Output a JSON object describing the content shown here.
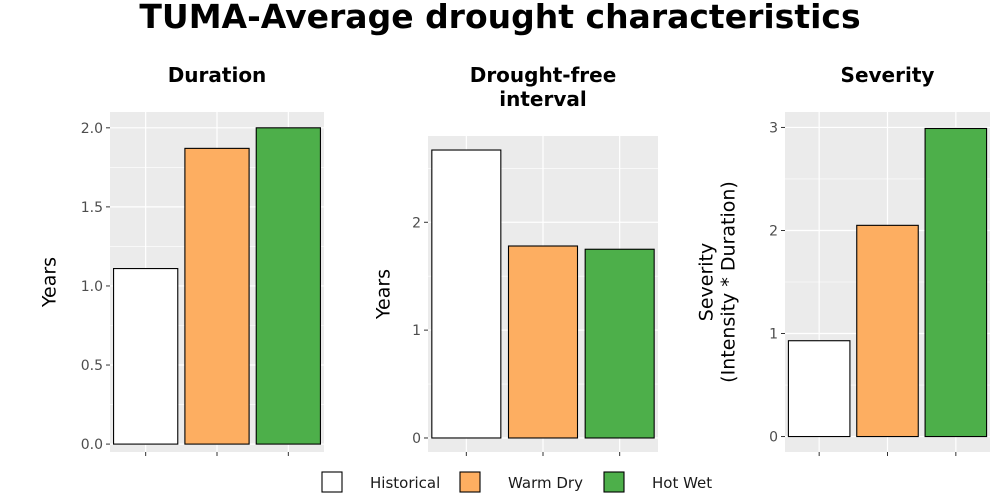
{
  "title": "TUMA-Average drought characteristics",
  "colors": {
    "panel_bg": "#EBEBEB",
    "grid": "#FFFFFF",
    "bar_outline": "#000000"
  },
  "legend": {
    "placement": "bottom",
    "items": [
      {
        "label": "Historical",
        "color": "#FFFFFF"
      },
      {
        "label": "Warm Dry",
        "color": "#FDAE61"
      },
      {
        "label": "Hot Wet",
        "color": "#4DAF4A"
      }
    ]
  },
  "chart_data": [
    {
      "type": "bar",
      "title_lines": [
        "Duration"
      ],
      "ylabel_lines": [
        "Years"
      ],
      "categories": [
        "Historical",
        "Warm Dry",
        "Hot Wet"
      ],
      "values": [
        1.11,
        1.87,
        2.0
      ],
      "ylim": [
        -0.05,
        2.1
      ],
      "yticks": [
        0.0,
        0.5,
        1.0,
        1.5,
        2.0
      ],
      "ytick_labels": [
        "0.0",
        "0.5",
        "1.0",
        "1.5",
        "2.0"
      ],
      "grid": true
    },
    {
      "type": "bar",
      "title_lines": [
        "Drought-free",
        "interval"
      ],
      "ylabel_lines": [
        "Years"
      ],
      "categories": [
        "Historical",
        "Warm Dry",
        "Hot Wet"
      ],
      "values": [
        2.67,
        1.78,
        1.75
      ],
      "ylim": [
        -0.13,
        2.8
      ],
      "yticks": [
        0,
        1,
        2
      ],
      "ytick_labels": [
        "0",
        "1",
        "2"
      ],
      "grid": true
    },
    {
      "type": "bar",
      "title_lines": [
        "Severity"
      ],
      "ylabel_lines": [
        "Severity",
        "(Intensity * Duration)"
      ],
      "categories": [
        "Historical",
        "Warm Dry",
        "Hot Wet"
      ],
      "values": [
        0.93,
        2.05,
        2.99
      ],
      "ylim": [
        -0.15,
        3.15
      ],
      "yticks": [
        0,
        1,
        2,
        3
      ],
      "ytick_labels": [
        "0",
        "1",
        "2",
        "3"
      ],
      "grid": true
    }
  ]
}
